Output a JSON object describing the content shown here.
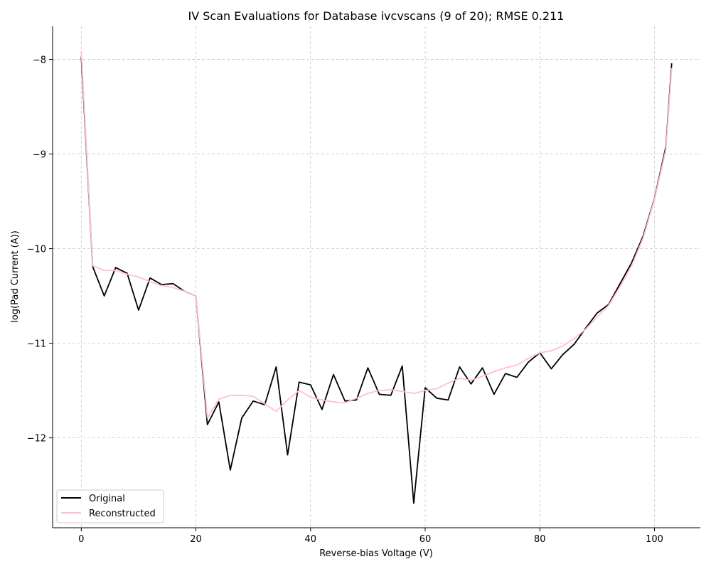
{
  "chart_data": {
    "type": "line",
    "title": "IV Scan Evaluations for Database ivcvscans (9 of 20); RMSE 0.211",
    "xlabel": "Reverse-bias Voltage (V)",
    "ylabel": "log(Pad Current (A))",
    "xlim": [
      -5,
      108
    ],
    "ylim": [
      -12.95,
      -7.65
    ],
    "xticks": [
      0,
      20,
      40,
      60,
      80,
      100
    ],
    "yticks": [
      -12,
      -11,
      -10,
      -9,
      -8
    ],
    "xtick_labels": [
      "0",
      "20",
      "40",
      "60",
      "80",
      "100"
    ],
    "ytick_labels": [
      "−12",
      "−11",
      "−10",
      "−9",
      "−8"
    ],
    "grid": true,
    "legend_position": "lower-left",
    "x": [
      0,
      2,
      4,
      6,
      8,
      10,
      12,
      14,
      16,
      18,
      20,
      22,
      24,
      26,
      28,
      30,
      32,
      34,
      36,
      38,
      40,
      42,
      44,
      46,
      48,
      50,
      52,
      54,
      56,
      58,
      60,
      62,
      64,
      66,
      68,
      70,
      72,
      74,
      76,
      78,
      80,
      82,
      84,
      86,
      88,
      90,
      92,
      94,
      96,
      98,
      100,
      102,
      103
    ],
    "series": [
      {
        "name": "Original",
        "color": "#000000",
        "values": [
          -7.97,
          -10.19,
          -10.5,
          -10.2,
          -10.26,
          -10.65,
          -10.31,
          -10.38,
          -10.37,
          -10.45,
          -10.5,
          -11.86,
          -11.62,
          -12.34,
          -11.79,
          -11.61,
          -11.65,
          -11.25,
          -12.18,
          -11.41,
          -11.44,
          -11.7,
          -11.33,
          -11.61,
          -11.6,
          -11.26,
          -11.54,
          -11.55,
          -11.24,
          -12.69,
          -11.47,
          -11.58,
          -11.6,
          -11.25,
          -11.43,
          -11.26,
          -11.54,
          -11.32,
          -11.36,
          -11.2,
          -11.1,
          -11.27,
          -11.12,
          -11.01,
          -10.84,
          -10.68,
          -10.59,
          -10.37,
          -10.15,
          -9.87,
          -9.47,
          -8.92,
          -8.04
        ]
      },
      {
        "name": "Reconstructed",
        "color": "#ffc0cb",
        "values": [
          -7.91,
          -10.18,
          -10.23,
          -10.23,
          -10.27,
          -10.3,
          -10.35,
          -10.39,
          -10.41,
          -10.45,
          -10.5,
          -11.79,
          -11.59,
          -11.55,
          -11.55,
          -11.56,
          -11.64,
          -11.72,
          -11.6,
          -11.5,
          -11.57,
          -11.6,
          -11.62,
          -11.63,
          -11.58,
          -11.53,
          -11.5,
          -11.49,
          -11.51,
          -11.53,
          -11.5,
          -11.48,
          -11.42,
          -11.37,
          -11.39,
          -11.35,
          -11.3,
          -11.26,
          -11.23,
          -11.16,
          -11.1,
          -11.08,
          -11.03,
          -10.95,
          -10.85,
          -10.72,
          -10.6,
          -10.4,
          -10.18,
          -9.89,
          -9.48,
          -8.95,
          -8.09
        ]
      }
    ]
  }
}
